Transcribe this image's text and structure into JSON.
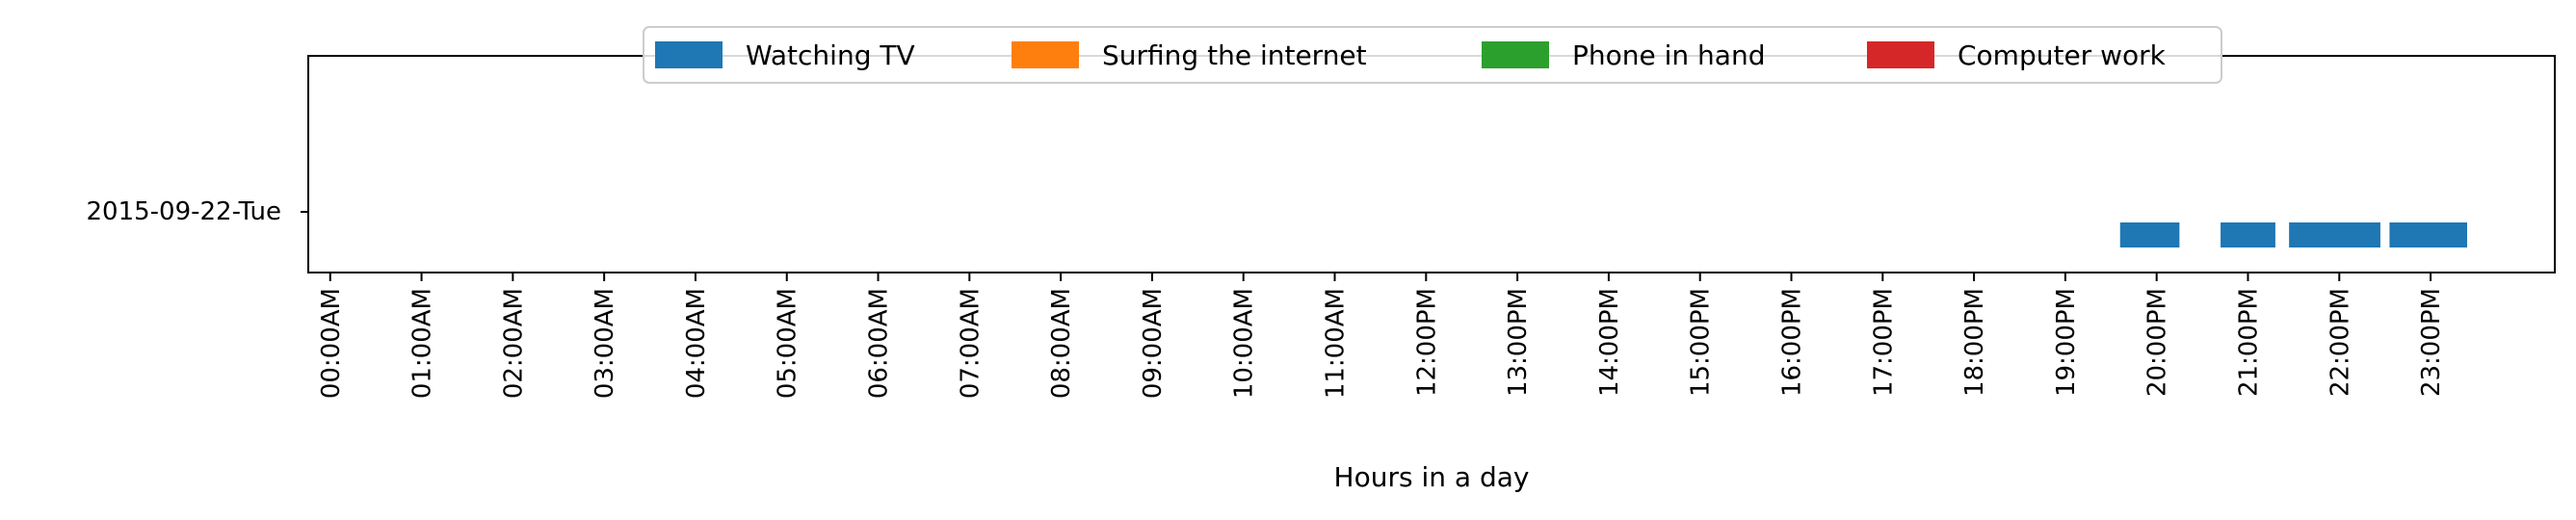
{
  "chart_data": {
    "type": "bar",
    "orientation": "horizontal-timeline",
    "xlabel": "Hours in a day",
    "ylabel": "",
    "xlim": [
      0,
      24
    ],
    "x_ticks": [
      {
        "value": 0,
        "label": "00:00AM"
      },
      {
        "value": 1,
        "label": "01:00AM"
      },
      {
        "value": 2,
        "label": "02:00AM"
      },
      {
        "value": 3,
        "label": "03:00AM"
      },
      {
        "value": 4,
        "label": "04:00AM"
      },
      {
        "value": 5,
        "label": "05:00AM"
      },
      {
        "value": 6,
        "label": "06:00AM"
      },
      {
        "value": 7,
        "label": "07:00AM"
      },
      {
        "value": 8,
        "label": "08:00AM"
      },
      {
        "value": 9,
        "label": "09:00AM"
      },
      {
        "value": 10,
        "label": "10:00AM"
      },
      {
        "value": 11,
        "label": "11:00AM"
      },
      {
        "value": 12,
        "label": "12:00PM"
      },
      {
        "value": 13,
        "label": "13:00PM"
      },
      {
        "value": 14,
        "label": "14:00PM"
      },
      {
        "value": 15,
        "label": "15:00PM"
      },
      {
        "value": 16,
        "label": "16:00PM"
      },
      {
        "value": 17,
        "label": "17:00PM"
      },
      {
        "value": 18,
        "label": "18:00PM"
      },
      {
        "value": 19,
        "label": "19:00PM"
      },
      {
        "value": 20,
        "label": "20:00PM"
      },
      {
        "value": 21,
        "label": "21:00PM"
      },
      {
        "value": 22,
        "label": "22:00PM"
      },
      {
        "value": 23,
        "label": "23:00PM"
      }
    ],
    "categories": [
      "2015-09-22-Tue"
    ],
    "legend_position": "top-center",
    "grid": false,
    "series": [
      {
        "name": "Watching TV",
        "color": "#1f77b4",
        "intervals": [
          {
            "category": "2015-09-22-Tue",
            "start": 19.6,
            "end": 20.25
          },
          {
            "category": "2015-09-22-Tue",
            "start": 20.7,
            "end": 21.3
          },
          {
            "category": "2015-09-22-Tue",
            "start": 21.45,
            "end": 22.45
          },
          {
            "category": "2015-09-22-Tue",
            "start": 22.55,
            "end": 23.4
          }
        ]
      },
      {
        "name": "Surfing the internet",
        "color": "#ff7f0e",
        "intervals": []
      },
      {
        "name": "Phone in hand",
        "color": "#2ca02c",
        "intervals": []
      },
      {
        "name": "Computer work",
        "color": "#d62728",
        "intervals": []
      }
    ]
  }
}
